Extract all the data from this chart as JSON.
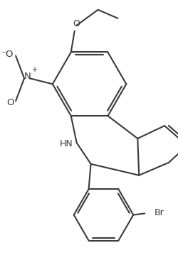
{
  "background_color": "#ffffff",
  "line_color": "#3a3a3a",
  "line_width": 1.5,
  "figsize": [
    2.51,
    3.66
  ],
  "dpi": 100,
  "xlim": [
    0,
    251
  ],
  "ylim": [
    0,
    366
  ]
}
